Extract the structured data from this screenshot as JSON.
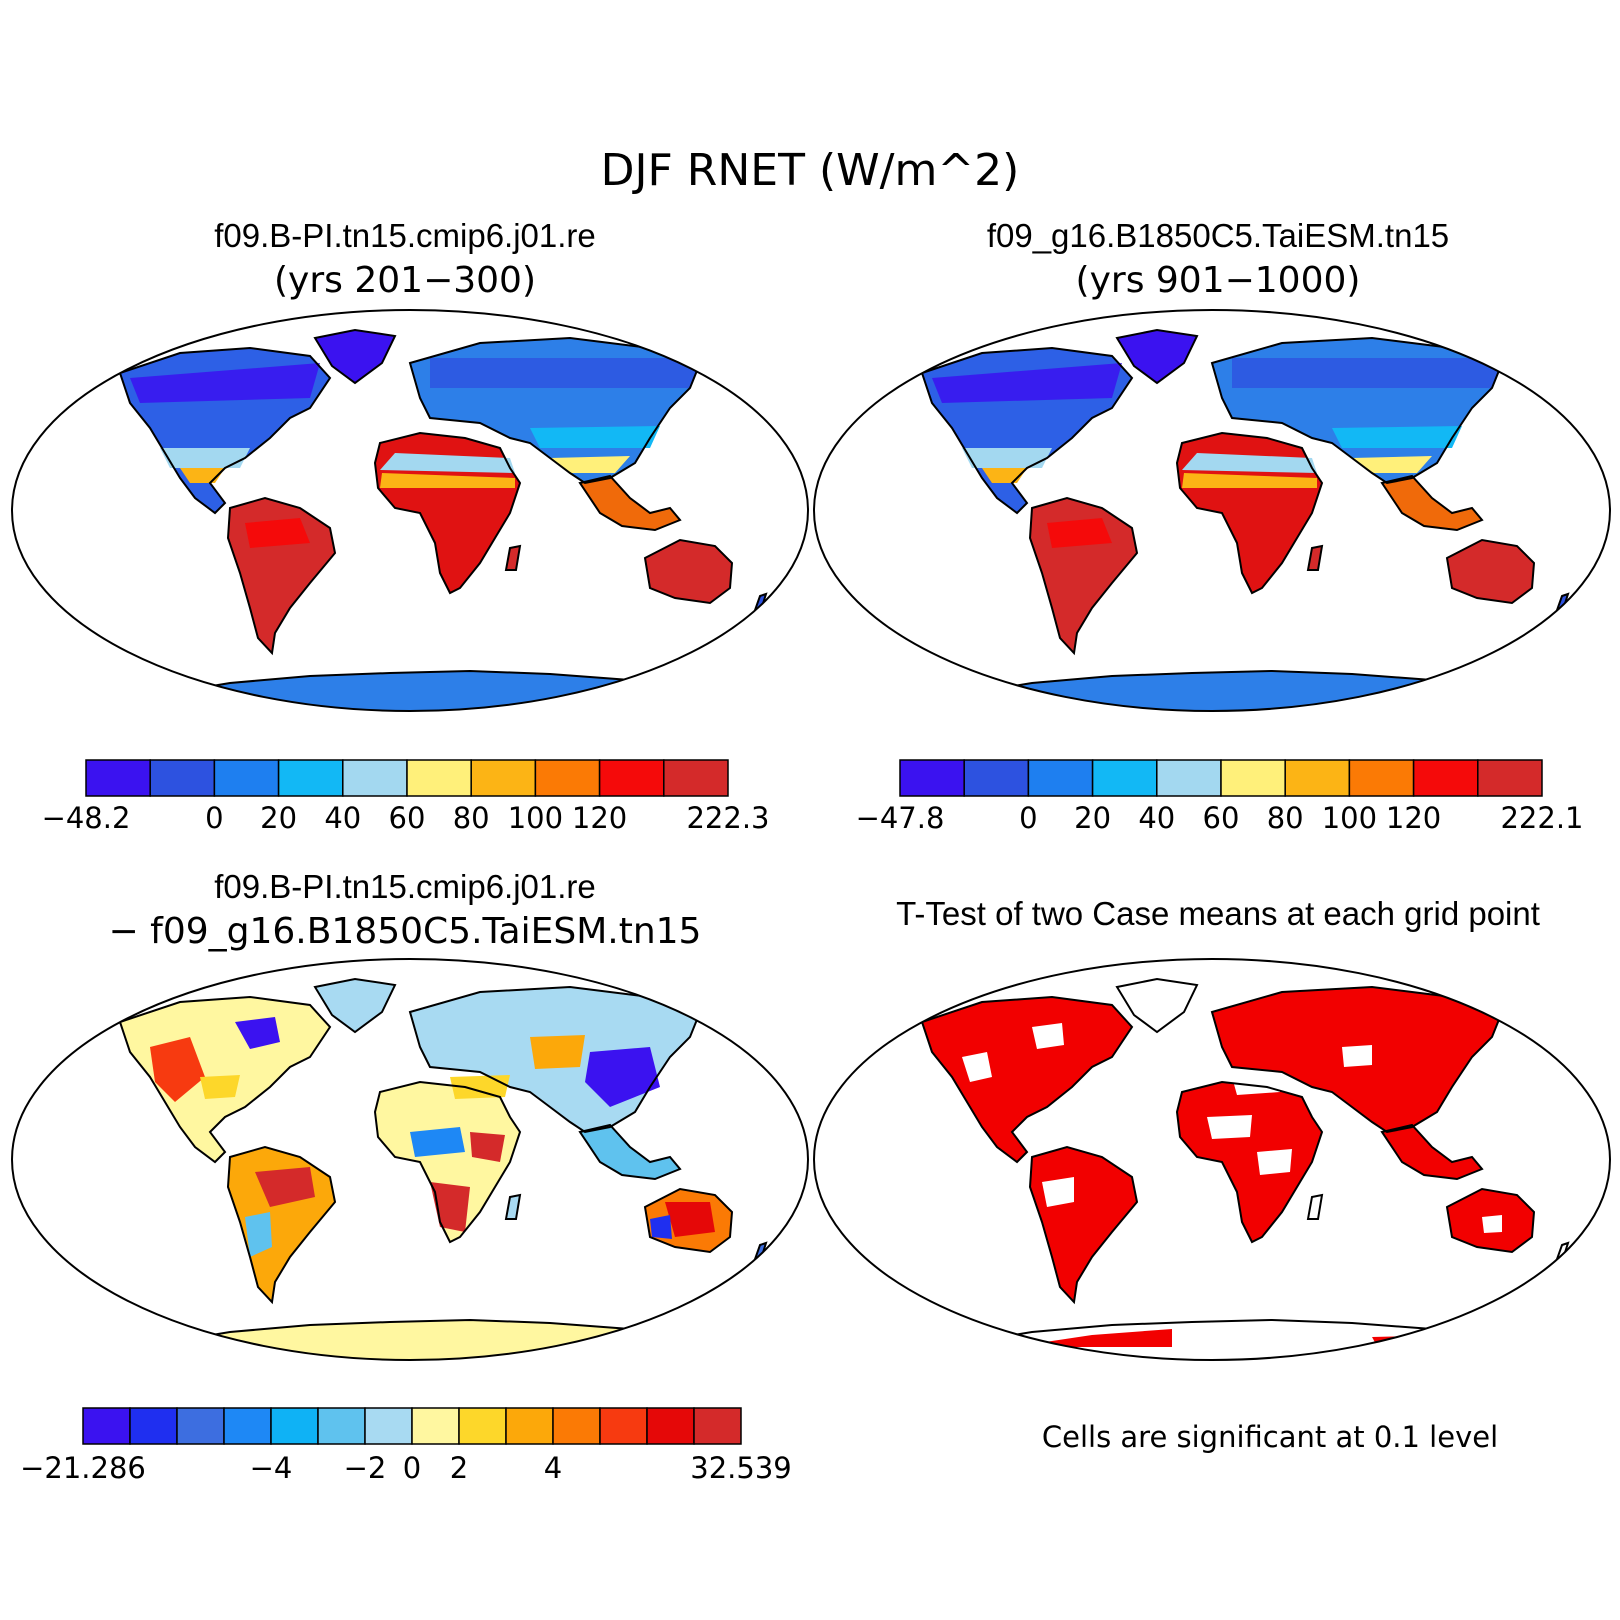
{
  "figure": {
    "title": "DJF RNET (W/m^2)"
  },
  "panels": [
    {
      "id": "case1",
      "title_line1": "f09.B-PI.tn15.cmip6.j01.re",
      "title_line2": "(yrs 201−300)",
      "colorbar": {
        "colors": [
          "#3b12f0",
          "#2d52e0",
          "#1e7ff0",
          "#12b8f5",
          "#a3d8f0",
          "#fff07a",
          "#fcb415",
          "#fb7a05",
          "#f50a0a",
          "#d42a2a"
        ],
        "tick_labels": [
          "−48.2",
          "0",
          "20",
          "40",
          "60",
          "80",
          "100",
          "120",
          "222.3"
        ]
      }
    },
    {
      "id": "case2",
      "title_line1": "f09_g16.B1850C5.TaiESM.tn15",
      "title_line2": "(yrs 901−1000)",
      "colorbar": {
        "colors": [
          "#3b12f0",
          "#2d52e0",
          "#1e7ff0",
          "#12b8f5",
          "#a3d8f0",
          "#fff07a",
          "#fcb415",
          "#fb7a05",
          "#f50a0a",
          "#d42a2a"
        ],
        "tick_labels": [
          "−47.8",
          "0",
          "20",
          "40",
          "60",
          "80",
          "100",
          "120",
          "222.1"
        ]
      }
    },
    {
      "id": "diff",
      "title_line1": "f09.B-PI.tn15.cmip6.j01.re",
      "title_line2": "− f09_g16.B1850C5.TaiESM.tn15",
      "colorbar": {
        "colors": [
          "#3b12f0",
          "#1f2ff0",
          "#3d6ee0",
          "#1e88f5",
          "#0fb2f5",
          "#5fc2ee",
          "#a8daf2",
          "#fff7a0",
          "#fdd72a",
          "#fca80a",
          "#fb7a05",
          "#f73a10",
          "#e50808",
          "#d42a2a"
        ],
        "tick_labels": [
          "−21.286",
          "−4",
          "−2",
          "0",
          "2",
          "4",
          "32.539"
        ]
      }
    },
    {
      "id": "ttest",
      "title_line1": "T-Test of two Case means at each grid point",
      "note": "Cells are significant at 0.1 level",
      "significant_color": "#f20000"
    }
  ]
}
